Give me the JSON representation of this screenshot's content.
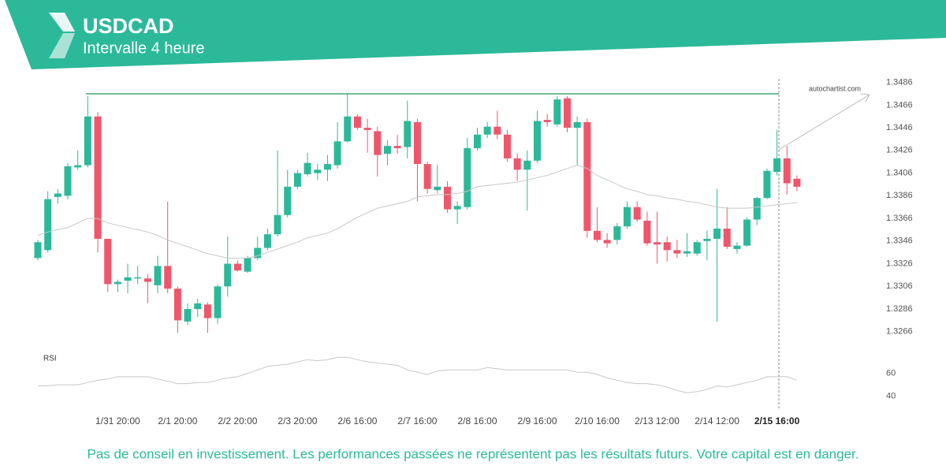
{
  "chart_data": [
    {
      "type": "candlestick",
      "title": "USDCAD",
      "subtitle": "Intervalle 4 heure",
      "annotation": "autochartist.com",
      "categories": [
        null,
        null,
        null,
        null,
        null,
        null,
        null,
        null,
        "1/31 20:00",
        null,
        null,
        null,
        null,
        null,
        "2/1 20:00",
        null,
        null,
        null,
        null,
        null,
        "2/2 20:00",
        null,
        null,
        null,
        null,
        null,
        "2/3 20:00",
        null,
        null,
        null,
        null,
        null,
        "2/6 16:00",
        null,
        null,
        null,
        null,
        null,
        "2/7 16:00",
        null,
        null,
        null,
        null,
        null,
        "2/8 16:00",
        null,
        null,
        null,
        null,
        null,
        "2/9 16:00",
        null,
        null,
        null,
        null,
        null,
        "2/10 16:00",
        null,
        null,
        null,
        null,
        null,
        "2/13 12:00",
        null,
        null,
        null,
        null,
        null,
        "2/14 12:00",
        null,
        null,
        null,
        null,
        null,
        "2/15 16:00",
        null,
        null
      ],
      "open": [
        1.3331,
        1.3338,
        1.3385,
        1.3386,
        1.3411,
        1.3413,
        1.3456,
        1.3348,
        1.3308,
        1.3311,
        1.3313,
        1.3313,
        1.3307,
        1.3324,
        1.3304,
        1.3275,
        1.3286,
        1.329,
        1.3278,
        1.3306,
        1.3326,
        1.3319,
        1.3331,
        1.334,
        1.3352,
        1.3369,
        1.3394,
        1.3405,
        1.3406,
        1.3409,
        1.3413,
        1.3434,
        1.3456,
        1.3446,
        1.3443,
        1.3423,
        1.343,
        1.3429,
        1.3451,
        1.3414,
        1.3391,
        1.3394,
        1.3374,
        1.3376,
        1.3428,
        1.344,
        1.3447,
        1.344,
        1.3419,
        1.3409,
        1.3417,
        1.3453,
        1.3449,
        1.3472,
        1.3446,
        1.3451,
        1.3355,
        1.3347,
        1.3347,
        1.3359,
        1.3376,
        1.3364,
        1.3345,
        1.3345,
        1.3338,
        1.3335,
        1.3335,
        1.3346,
        1.3348,
        1.3357,
        1.3339,
        1.3342,
        1.3365,
        1.3384,
        1.3407,
        1.3419,
        1.3401
      ],
      "high": [
        1.3347,
        1.339,
        1.3392,
        1.3415,
        1.3426,
        1.3474,
        1.346,
        1.3348,
        1.3312,
        1.3326,
        1.3324,
        1.3317,
        1.3333,
        1.3381,
        1.3306,
        1.3291,
        1.3295,
        1.3292,
        1.3308,
        1.335,
        1.3329,
        1.3333,
        1.335,
        1.3357,
        1.3426,
        1.3409,
        1.3409,
        1.3424,
        1.3414,
        1.3422,
        1.3451,
        1.3476,
        1.3458,
        1.3454,
        1.3447,
        1.3435,
        1.344,
        1.347,
        1.3454,
        1.3416,
        1.3413,
        1.3399,
        1.3381,
        1.3437,
        1.3446,
        1.3451,
        1.3461,
        1.3444,
        1.3423,
        1.3426,
        1.3461,
        1.3458,
        1.3474,
        1.3474,
        1.3456,
        1.3454,
        1.3376,
        1.3353,
        1.3362,
        1.3381,
        1.3381,
        1.3372,
        1.3372,
        1.335,
        1.3347,
        1.3353,
        1.3347,
        1.3355,
        1.3392,
        1.3376,
        1.3345,
        1.3367,
        1.3385,
        1.341,
        1.3444,
        1.343,
        1.3404
      ],
      "low": [
        1.3329,
        1.3336,
        1.3379,
        1.3383,
        1.3409,
        1.3411,
        1.3336,
        1.3301,
        1.3301,
        1.33,
        1.3308,
        1.3291,
        1.33,
        1.33,
        1.3265,
        1.3272,
        1.3279,
        1.3265,
        1.3273,
        1.3297,
        1.3319,
        1.3318,
        1.3329,
        1.3338,
        1.335,
        1.3367,
        1.3392,
        1.3403,
        1.34,
        1.3399,
        1.341,
        1.3433,
        1.3444,
        1.3424,
        1.3403,
        1.3413,
        1.3423,
        1.3419,
        1.3381,
        1.3388,
        1.3388,
        1.3371,
        1.3361,
        1.3374,
        1.3426,
        1.3437,
        1.3436,
        1.3416,
        1.3399,
        1.3373,
        1.3415,
        1.3447,
        1.3447,
        1.3442,
        1.3413,
        1.3349,
        1.3345,
        1.334,
        1.3343,
        1.3357,
        1.3363,
        1.3342,
        1.3326,
        1.3328,
        1.3331,
        1.3332,
        1.3333,
        1.3329,
        1.3275,
        1.3339,
        1.3335,
        1.3341,
        1.336,
        1.3383,
        1.3404,
        1.3387,
        1.339
      ],
      "close": [
        1.3345,
        1.3383,
        1.3388,
        1.3412,
        1.3413,
        1.3456,
        1.3348,
        1.3308,
        1.331,
        1.3314,
        1.3314,
        1.331,
        1.3324,
        1.3304,
        1.3276,
        1.3286,
        1.3291,
        1.3278,
        1.3306,
        1.3326,
        1.332,
        1.3331,
        1.334,
        1.3352,
        1.3369,
        1.3394,
        1.3406,
        1.3415,
        1.3409,
        1.3414,
        1.3434,
        1.3456,
        1.3446,
        1.3444,
        1.3422,
        1.343,
        1.3428,
        1.3452,
        1.3414,
        1.3392,
        1.3394,
        1.3374,
        1.3377,
        1.3428,
        1.344,
        1.3447,
        1.344,
        1.3419,
        1.3409,
        1.3417,
        1.3452,
        1.3451,
        1.3471,
        1.3446,
        1.3451,
        1.3355,
        1.3347,
        1.3344,
        1.3359,
        1.3376,
        1.3365,
        1.3344,
        1.3343,
        1.3338,
        1.3335,
        1.3337,
        1.3345,
        1.3348,
        1.3357,
        1.3341,
        1.3342,
        1.3365,
        1.3384,
        1.3408,
        1.3419,
        1.3397,
        1.3394
      ],
      "up_color": "#2bb99a",
      "down_color": "#f0566b",
      "ma": {
        "color": "#c8c8c8",
        "values": [
          1.3351,
          1.3354,
          1.3356,
          1.3358,
          1.3362,
          1.3366,
          1.3366,
          1.3362,
          1.336,
          1.3358,
          1.3356,
          1.3354,
          1.3351,
          1.3347,
          1.3344,
          1.3341,
          1.3338,
          1.3335,
          1.3333,
          1.3331,
          1.3331,
          1.3331,
          1.3333,
          1.3336,
          1.3339,
          1.3342,
          1.3345,
          1.3349,
          1.3351,
          1.3353,
          1.3357,
          1.3362,
          1.3367,
          1.3371,
          1.3375,
          1.3377,
          1.3379,
          1.3381,
          1.3385,
          1.3386,
          1.3387,
          1.3387,
          1.3388,
          1.339,
          1.3394,
          1.3395,
          1.3396,
          1.3397,
          1.3398,
          1.34,
          1.3402,
          1.3404,
          1.3407,
          1.341,
          1.3413,
          1.341,
          1.3404,
          1.34,
          1.3396,
          1.3392,
          1.339,
          1.3387,
          1.3386,
          1.3384,
          1.3383,
          1.3381,
          1.338,
          1.3378,
          1.3376,
          1.3375,
          1.3375,
          1.3375,
          1.3376,
          1.3377,
          1.3378,
          1.3379,
          1.338
        ]
      },
      "level": 1.3476,
      "level_color": "#6fbf96",
      "ylim": [
        1.3254,
        1.3492
      ],
      "yticks": [
        1.3486,
        1.3466,
        1.3446,
        1.3426,
        1.3406,
        1.3386,
        1.3366,
        1.3346,
        1.3326,
        1.3306,
        1.3286,
        1.3266
      ],
      "grid": false
    },
    {
      "type": "line",
      "title": "RSI",
      "color": "#c8c8c8",
      "values": [
        49,
        49,
        50,
        50,
        50,
        52,
        54,
        55,
        57,
        57,
        57,
        57,
        55,
        53,
        51,
        51,
        52,
        52,
        54,
        56,
        57,
        60,
        63,
        66,
        67,
        68,
        70,
        72,
        71,
        72,
        74,
        74,
        72,
        70,
        69,
        68,
        67,
        63,
        61,
        59,
        62,
        63,
        63,
        63,
        63,
        65,
        64,
        63,
        63,
        63,
        63,
        63,
        63,
        63,
        61,
        61,
        59,
        56,
        54,
        52,
        51,
        51,
        50,
        48,
        45,
        43,
        44,
        46,
        49,
        48,
        50,
        52,
        54,
        57,
        57,
        57,
        54
      ],
      "ylim": [
        28,
        79
      ],
      "yticks": [
        60,
        40
      ],
      "grid": false
    }
  ],
  "disclaimer": "Pas de conseil en investissement. Les performances passées ne représentent pas les résultats futurs. Votre capital est en danger."
}
